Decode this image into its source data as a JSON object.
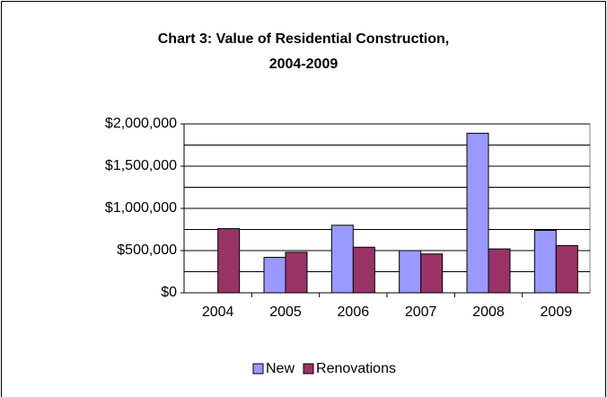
{
  "chart_data": {
    "type": "bar",
    "title": [
      "Chart 3:  Value of Residential Construction,",
      "2004-2009"
    ],
    "categories": [
      "2004",
      "2005",
      "2006",
      "2007",
      "2008",
      "2009"
    ],
    "series": [
      {
        "name": "New",
        "color": "#9999ff",
        "values": [
          0,
          420000,
          800000,
          500000,
          1890000,
          740000
        ]
      },
      {
        "name": "Renovations",
        "color": "#993366",
        "values": [
          760000,
          480000,
          540000,
          460000,
          520000,
          560000
        ]
      }
    ],
    "ylim": [
      0,
      2000000
    ],
    "yticks": [
      {
        "value": 0,
        "label": "$0"
      },
      {
        "value": 500000,
        "label": "$500,000"
      },
      {
        "value": 1000000,
        "label": "$1,000,000"
      },
      {
        "value": 1500000,
        "label": "$1,500,000"
      },
      {
        "value": 2000000,
        "label": "$2,000,000"
      }
    ],
    "minor_gridlines": [
      250000,
      750000,
      1250000,
      1750000
    ],
    "grid": true,
    "legend": "bottom"
  }
}
